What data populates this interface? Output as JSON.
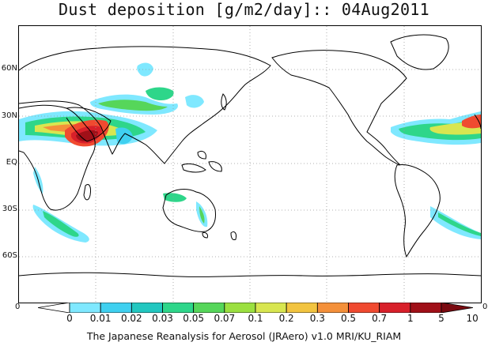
{
  "title": "Dust deposition [g/m2/day]:: 04Aug2011",
  "lat_labels": [
    "60N",
    "30N",
    "EQ",
    "30S",
    "60S"
  ],
  "colorbar": {
    "labels": [
      "0",
      "0.01",
      "0.02",
      "0.03",
      "0.05",
      "0.07",
      "0.1",
      "0.2",
      "0.3",
      "0.5",
      "0.7",
      "1",
      "5",
      "10"
    ],
    "colors": [
      "#ffffff",
      "#7fe8ff",
      "#3fd0f0",
      "#22c7c0",
      "#2ed68a",
      "#56d65a",
      "#9be040",
      "#d8e650",
      "#f2c440",
      "#f4903a",
      "#f04a30",
      "#d8202a",
      "#a01018",
      "#7a0a10"
    ],
    "left_end": "0",
    "right_end": "0"
  },
  "footer": "The Japanese Reanalysis for Aerosol (JRAero) v1.0 MRI/KU_RIAM",
  "colors": {
    "coast": "#000000",
    "grid": "#999999"
  }
}
